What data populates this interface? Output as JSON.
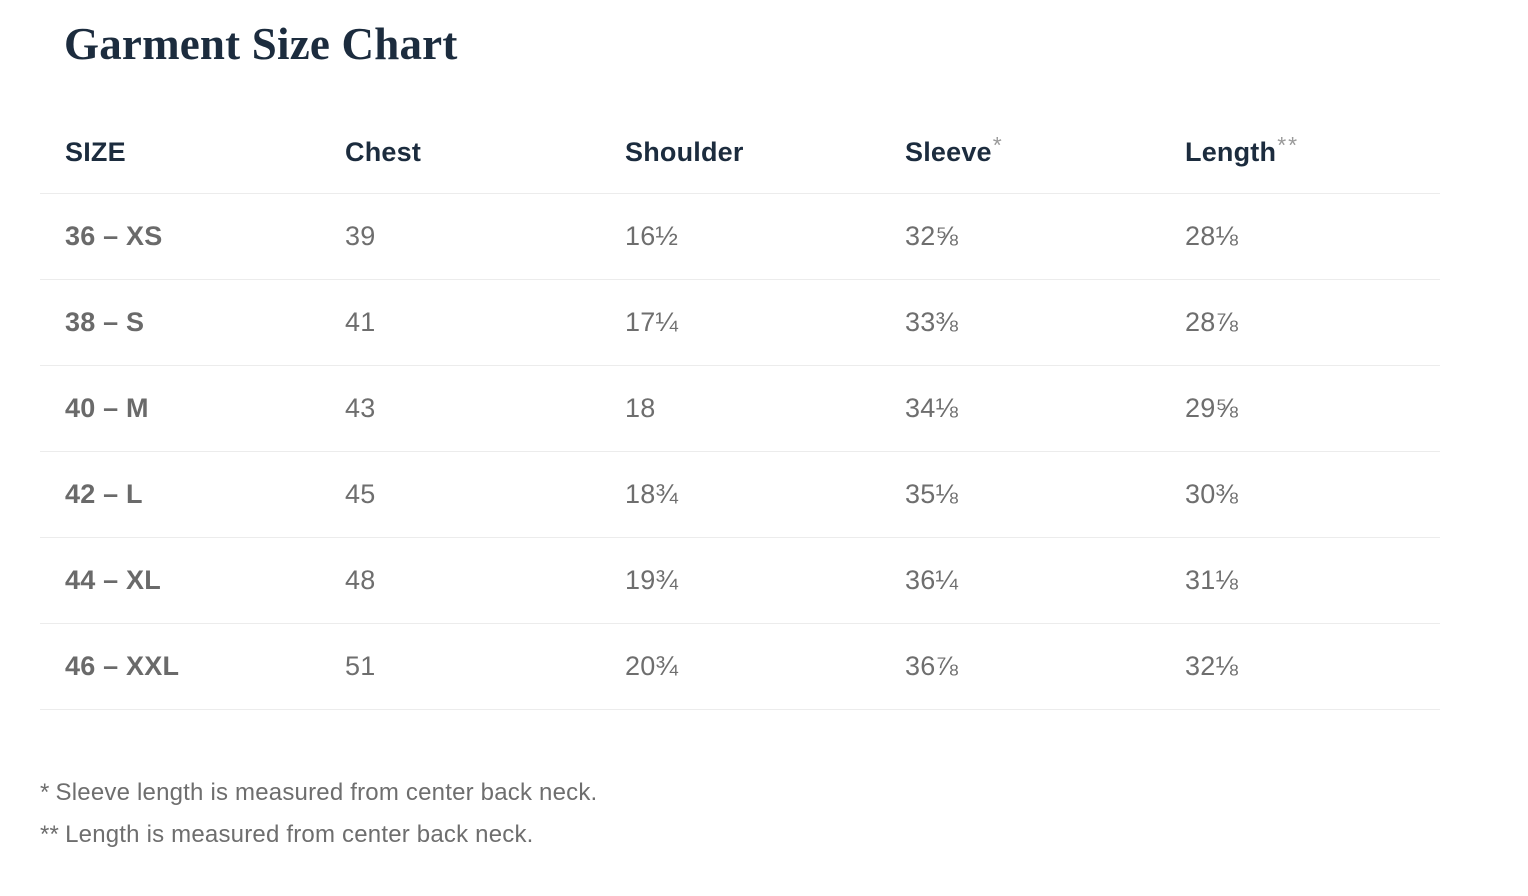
{
  "page": {
    "title": "Garment Size Chart"
  },
  "table": {
    "columns": [
      {
        "label": "SIZE",
        "marker": ""
      },
      {
        "label": "Chest",
        "marker": ""
      },
      {
        "label": "Shoulder",
        "marker": ""
      },
      {
        "label": "Sleeve",
        "marker": "*"
      },
      {
        "label": "Length",
        "marker": "**"
      }
    ],
    "rows": [
      {
        "size": "36 – XS",
        "chest": "39",
        "shoulder": "16½",
        "sleeve": "32⅝",
        "length": "28⅛"
      },
      {
        "size": "38 – S",
        "chest": "41",
        "shoulder": "17¼",
        "sleeve": "33⅜",
        "length": "28⅞"
      },
      {
        "size": "40 – M",
        "chest": "43",
        "shoulder": "18",
        "sleeve": "34⅛",
        "length": "29⅝"
      },
      {
        "size": "42 – L",
        "chest": "45",
        "shoulder": "18¾",
        "sleeve": "35⅛",
        "length": "30⅜"
      },
      {
        "size": "44 – XL",
        "chest": "48",
        "shoulder": "19¾",
        "sleeve": "36¼",
        "length": "31⅛"
      },
      {
        "size": "46 – XXL",
        "chest": "51",
        "shoulder": "20¾",
        "sleeve": "36⅞",
        "length": "32⅛"
      }
    ]
  },
  "footnotes": [
    {
      "marker": "*",
      "text": "Sleeve length is measured from center back neck."
    },
    {
      "marker": "**",
      "text": "Length is measured from center back neck."
    }
  ],
  "colors": {
    "heading": "#1c2c3e",
    "body_text": "#6e6e6e",
    "divider": "#ececec",
    "background": "#ffffff"
  }
}
